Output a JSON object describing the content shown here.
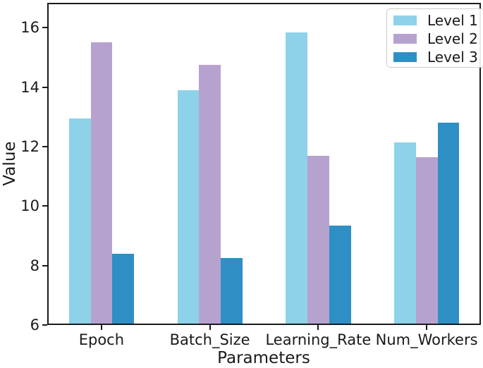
{
  "figure": {
    "background": "#ffffff",
    "text_color": "#1a1a1a",
    "spine_color": "#1a1a1a"
  },
  "chart_data": {
    "type": "bar",
    "title": "",
    "xlabel": "Parameters",
    "ylabel": "Value",
    "categories": [
      "Epoch",
      "Batch_Size",
      "Learning_Rate",
      "Num_Workers"
    ],
    "series": [
      {
        "name": "Level 1",
        "color": "#8DD2E8",
        "values": [
          12.95,
          13.9,
          15.85,
          12.15
        ]
      },
      {
        "name": "Level 2",
        "color": "#B6A2CF",
        "values": [
          15.5,
          14.75,
          11.7,
          11.65
        ]
      },
      {
        "name": "Level 3",
        "color": "#2E8FC4",
        "values": [
          8.4,
          8.25,
          9.35,
          12.8
        ]
      }
    ],
    "ylim": [
      6,
      16.84
    ],
    "yticks": [
      6,
      8,
      10,
      12,
      14,
      16
    ],
    "grid": false,
    "legend_position": "upper right",
    "legend_labels": [
      "Level 1",
      "Level 2",
      "Level 3"
    ],
    "bar_width_fraction": 0.2
  }
}
